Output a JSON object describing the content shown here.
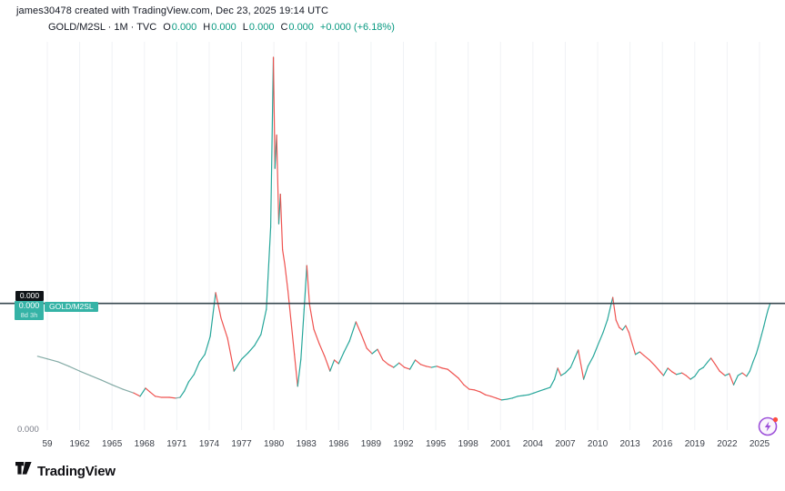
{
  "attribution": "james30478 created with TradingView.com, Dec 23, 2025 19:14 UTC",
  "legend": {
    "title": "GOLD/M2SL · 1M · TVC",
    "ohlc": [
      [
        "O",
        "0.000"
      ],
      [
        "H",
        "0.000"
      ],
      [
        "L",
        "0.000"
      ],
      [
        "C",
        "0.000"
      ]
    ],
    "change": "+0.000 (+6.18%)"
  },
  "price_scale": {
    "countdown": "0.000",
    "last_price": "0.000",
    "eta": "8d 3h",
    "tag": "GOLD/M2SL",
    "zero_level": "0.000"
  },
  "footer": {
    "brand": "TradingView",
    "logo_icon": "tradingview-logo"
  },
  "snapshot_button": {
    "icon": "flash-bolt-icon",
    "badge": "notification-dot"
  },
  "colors": {
    "up": "#26a69a",
    "down": "#ef5350",
    "neutral": "#84aba6",
    "price_line": "#37474f",
    "label_bg": "#35b3a6",
    "countdown_bg": "#101418",
    "value_text": "#089981",
    "grid": "#f0f2f5",
    "axis_text": "#3c4049",
    "muted_text": "#787b86",
    "flash_purple": "#9c4fd9",
    "badge_red": "#ff4d3e"
  },
  "chart_data": {
    "type": "line",
    "title": "GOLD/M2SL monthly ratio, 1959-2025 (values masked as 0.000 on scale)",
    "xlabel": "",
    "ylabel": "",
    "x_range": [
      1958,
      2026.4
    ],
    "y_range": [
      0,
      103
    ],
    "grid": "vertical-only",
    "legend_position": "top-left",
    "price_line_value": 33.5,
    "y_axis_labels": [
      "0.000"
    ],
    "x_ticks": [
      {
        "label": "59",
        "year": 1959
      },
      {
        "label": "1962",
        "year": 1962
      },
      {
        "label": "1965",
        "year": 1965
      },
      {
        "label": "1968",
        "year": 1968
      },
      {
        "label": "1971",
        "year": 1971
      },
      {
        "label": "1974",
        "year": 1974
      },
      {
        "label": "1977",
        "year": 1977
      },
      {
        "label": "1980",
        "year": 1980
      },
      {
        "label": "1983",
        "year": 1983
      },
      {
        "label": "1986",
        "year": 1986
      },
      {
        "label": "1989",
        "year": 1989
      },
      {
        "label": "1992",
        "year": 1992
      },
      {
        "label": "1995",
        "year": 1995
      },
      {
        "label": "1998",
        "year": 1998
      },
      {
        "label": "2001",
        "year": 2001
      },
      {
        "label": "2004",
        "year": 2004
      },
      {
        "label": "2007",
        "year": 2007
      },
      {
        "label": "2010",
        "year": 2010
      },
      {
        "label": "2013",
        "year": 2013
      },
      {
        "label": "2016",
        "year": 2016
      },
      {
        "label": "2019",
        "year": 2019
      },
      {
        "label": "2022",
        "year": 2022
      },
      {
        "label": "2025",
        "year": 2025
      }
    ],
    "series": [
      {
        "name": "GOLD/M2SL",
        "note": "points are [year, value(0-100 of 1980 peak), segment-color u=up d=down n=neutral]",
        "points": [
          [
            1958.1,
            19.2,
            "n"
          ],
          [
            1959,
            18.5,
            "n"
          ],
          [
            1960,
            17.7,
            "n"
          ],
          [
            1961,
            16.5,
            "n"
          ],
          [
            1962,
            15.2,
            "n"
          ],
          [
            1963,
            14,
            "n"
          ],
          [
            1964,
            12.8,
            "n"
          ],
          [
            1965,
            11.5,
            "n"
          ],
          [
            1966,
            10.3,
            "n"
          ],
          [
            1967,
            9.3,
            "n"
          ],
          [
            1967.6,
            8.4,
            "d"
          ],
          [
            1968.1,
            10.6,
            "u"
          ],
          [
            1968.5,
            9.6,
            "d"
          ],
          [
            1969,
            8.4,
            "d"
          ],
          [
            1969.6,
            8.1,
            "d"
          ],
          [
            1970.3,
            8.1,
            "d"
          ],
          [
            1970.9,
            7.9,
            "d"
          ],
          [
            1971.3,
            8.1,
            "n"
          ],
          [
            1971.7,
            9.8,
            "u"
          ],
          [
            1972.1,
            12.3,
            "u"
          ],
          [
            1972.6,
            14.3,
            "u"
          ],
          [
            1973.1,
            17.7,
            "u"
          ],
          [
            1973.6,
            19.7,
            "u"
          ],
          [
            1974.1,
            24.6,
            "u"
          ],
          [
            1974.6,
            36.4,
            "u"
          ],
          [
            1975.1,
            29.5,
            "d"
          ],
          [
            1975.7,
            24.1,
            "d"
          ],
          [
            1976.3,
            15.2,
            "d"
          ],
          [
            1977,
            18.4,
            "u"
          ],
          [
            1977.6,
            20.1,
            "u"
          ],
          [
            1978.2,
            22.1,
            "u"
          ],
          [
            1978.8,
            25.1,
            "u"
          ],
          [
            1979.3,
            31.9,
            "u"
          ],
          [
            1979.7,
            54.1,
            "u"
          ],
          [
            1979.95,
            100,
            "u"
          ],
          [
            1980.1,
            70,
            "d"
          ],
          [
            1980.25,
            79,
            "u"
          ],
          [
            1980.45,
            55,
            "d"
          ],
          [
            1980.6,
            63,
            "u"
          ],
          [
            1980.8,
            48,
            "d"
          ],
          [
            1981,
            44.2,
            "d"
          ],
          [
            1981.3,
            36.9,
            "d"
          ],
          [
            1981.6,
            28.3,
            "d"
          ],
          [
            1981.9,
            19.7,
            "d"
          ],
          [
            1982.2,
            11.1,
            "d"
          ],
          [
            1982.5,
            18.4,
            "u"
          ],
          [
            1982.8,
            31.9,
            "u"
          ],
          [
            1983.05,
            43.7,
            "u"
          ],
          [
            1983.3,
            33.2,
            "d"
          ],
          [
            1983.7,
            26.5,
            "d"
          ],
          [
            1984.2,
            22.6,
            "d"
          ],
          [
            1984.7,
            19.2,
            "d"
          ],
          [
            1985.2,
            15.2,
            "d"
          ],
          [
            1985.6,
            18.2,
            "u"
          ],
          [
            1986,
            17.2,
            "d"
          ],
          [
            1986.5,
            20.4,
            "u"
          ],
          [
            1987,
            23.3,
            "u"
          ],
          [
            1987.6,
            28.5,
            "u"
          ],
          [
            1988.1,
            25.1,
            "d"
          ],
          [
            1988.6,
            21.4,
            "d"
          ],
          [
            1989.1,
            19.9,
            "d"
          ],
          [
            1989.6,
            21.1,
            "u"
          ],
          [
            1990.1,
            18.2,
            "d"
          ],
          [
            1990.6,
            17,
            "d"
          ],
          [
            1991.1,
            16.2,
            "d"
          ],
          [
            1991.6,
            17.4,
            "u"
          ],
          [
            1992.1,
            16.2,
            "d"
          ],
          [
            1992.6,
            15.7,
            "d"
          ],
          [
            1993.1,
            18.2,
            "u"
          ],
          [
            1993.6,
            17,
            "d"
          ],
          [
            1994.1,
            16.5,
            "d"
          ],
          [
            1994.6,
            16.2,
            "d"
          ],
          [
            1995.1,
            16.5,
            "u"
          ],
          [
            1995.6,
            16,
            "d"
          ],
          [
            1996.1,
            15.7,
            "d"
          ],
          [
            1996.6,
            14.5,
            "d"
          ],
          [
            1997.1,
            13.3,
            "d"
          ],
          [
            1997.6,
            11.5,
            "d"
          ],
          [
            1998.1,
            10.3,
            "d"
          ],
          [
            1998.6,
            10.1,
            "d"
          ],
          [
            1999.1,
            9.6,
            "d"
          ],
          [
            1999.6,
            8.8,
            "d"
          ],
          [
            2000.1,
            8.4,
            "d"
          ],
          [
            2000.6,
            7.9,
            "d"
          ],
          [
            2001.1,
            7.4,
            "d"
          ],
          [
            2001.6,
            7.6,
            "u"
          ],
          [
            2002.1,
            7.9,
            "u"
          ],
          [
            2002.6,
            8.4,
            "u"
          ],
          [
            2003.1,
            8.6,
            "u"
          ],
          [
            2003.6,
            8.8,
            "u"
          ],
          [
            2004.1,
            9.3,
            "u"
          ],
          [
            2004.6,
            9.8,
            "u"
          ],
          [
            2005.1,
            10.3,
            "u"
          ],
          [
            2005.6,
            10.8,
            "u"
          ],
          [
            2006,
            13,
            "u"
          ],
          [
            2006.3,
            16,
            "u"
          ],
          [
            2006.6,
            14,
            "d"
          ],
          [
            2007,
            14.7,
            "u"
          ],
          [
            2007.5,
            16.2,
            "u"
          ],
          [
            2007.9,
            18.9,
            "u"
          ],
          [
            2008.2,
            20.9,
            "u"
          ],
          [
            2008.7,
            13,
            "d"
          ],
          [
            2009.1,
            16.5,
            "u"
          ],
          [
            2009.6,
            19.2,
            "u"
          ],
          [
            2010,
            22.1,
            "u"
          ],
          [
            2010.5,
            25.6,
            "u"
          ],
          [
            2010.9,
            29,
            "u"
          ],
          [
            2011.4,
            35.1,
            "u"
          ],
          [
            2011.7,
            29,
            "d"
          ],
          [
            2012,
            27,
            "d"
          ],
          [
            2012.3,
            26.3,
            "d"
          ],
          [
            2012.6,
            27.5,
            "u"
          ],
          [
            2012.9,
            25.6,
            "d"
          ],
          [
            2013.2,
            22.6,
            "d"
          ],
          [
            2013.5,
            19.7,
            "d"
          ],
          [
            2013.9,
            20.4,
            "u"
          ],
          [
            2014.3,
            19.4,
            "d"
          ],
          [
            2014.8,
            18.2,
            "d"
          ],
          [
            2015.3,
            16.7,
            "d"
          ],
          [
            2015.8,
            15,
            "d"
          ],
          [
            2016.1,
            14,
            "d"
          ],
          [
            2016.5,
            16,
            "u"
          ],
          [
            2016.9,
            15,
            "d"
          ],
          [
            2017.3,
            14.3,
            "d"
          ],
          [
            2017.8,
            14.7,
            "u"
          ],
          [
            2018.2,
            14,
            "d"
          ],
          [
            2018.6,
            13,
            "d"
          ],
          [
            2019,
            13.8,
            "u"
          ],
          [
            2019.4,
            15.5,
            "u"
          ],
          [
            2019.8,
            16.2,
            "u"
          ],
          [
            2020.2,
            17.7,
            "u"
          ],
          [
            2020.5,
            18.7,
            "u"
          ],
          [
            2020.9,
            17,
            "d"
          ],
          [
            2021.3,
            15.2,
            "d"
          ],
          [
            2021.8,
            14,
            "d"
          ],
          [
            2022.2,
            14.5,
            "u"
          ],
          [
            2022.6,
            11.5,
            "d"
          ],
          [
            2023,
            14,
            "u"
          ],
          [
            2023.4,
            14.7,
            "u"
          ],
          [
            2023.8,
            13.8,
            "d"
          ],
          [
            2024.1,
            15.2,
            "u"
          ],
          [
            2024.4,
            17.7,
            "u"
          ],
          [
            2024.7,
            19.9,
            "u"
          ],
          [
            2025,
            22.9,
            "u"
          ],
          [
            2025.2,
            25.1,
            "u"
          ],
          [
            2025.4,
            27.3,
            "u"
          ],
          [
            2025.6,
            29.7,
            "u"
          ],
          [
            2025.8,
            31.9,
            "u"
          ],
          [
            2025.97,
            33.3,
            "u"
          ]
        ]
      }
    ]
  }
}
